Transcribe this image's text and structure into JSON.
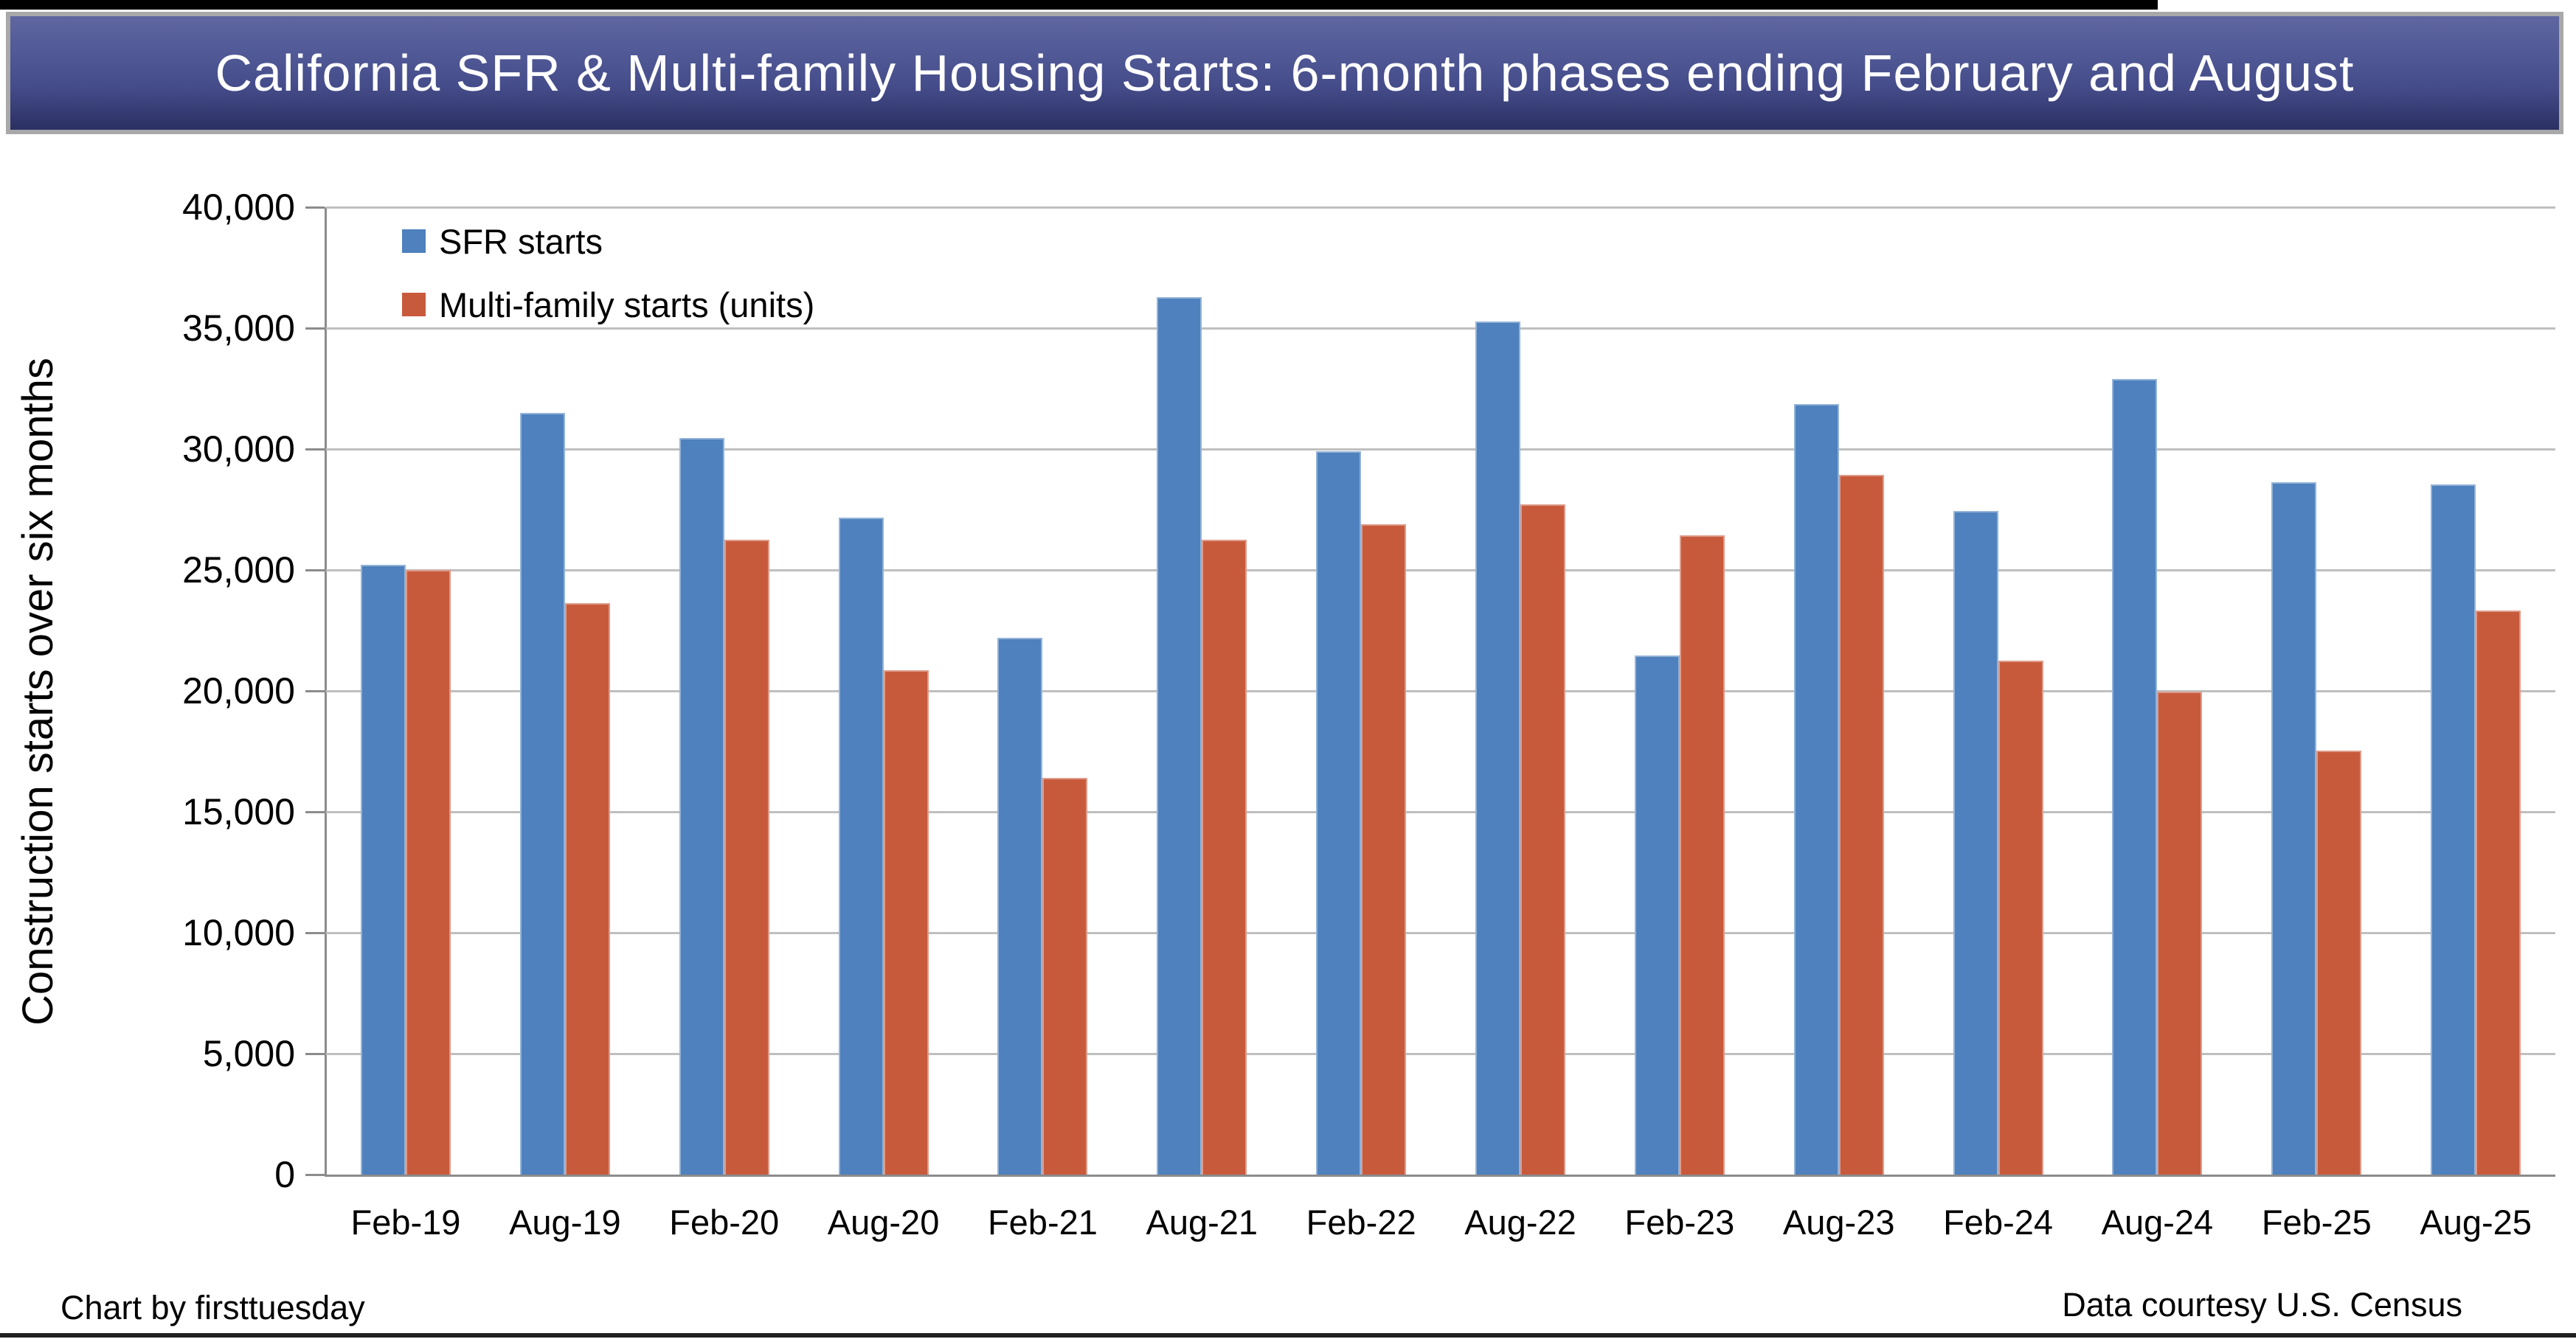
{
  "banner": {
    "title": "California SFR & Multi-family Housing Starts: 6-month phases ending February and August"
  },
  "footer": {
    "left": "Chart by firsttuesday",
    "right": "Data courtesy U.S. Census"
  },
  "colors": {
    "sfr_bar": "#4E81BD",
    "multifamily_bar": "#C85A3C",
    "gridline": "#BFBFBF",
    "axis": "#8C8C8C",
    "banner_top": "#5F66A0",
    "banner_bottom": "#2B3062",
    "banner_border": "#A8A8A8",
    "title_text": "#FFFFFF"
  },
  "chart_data": {
    "type": "bar",
    "title": "California SFR & Multi-family Housing Starts: 6-month phases ending February and August",
    "xlabel": "",
    "ylabel": "Construction starts over six months",
    "ylim": [
      0,
      40000
    ],
    "ytick_step": 5000,
    "ytick_labels": [
      "0",
      "5,000",
      "10,000",
      "15,000",
      "20,000",
      "25,000",
      "30,000",
      "35,000",
      "40,000"
    ],
    "grid": true,
    "legend_position": "upper-left-inside",
    "categories": [
      "Feb-19",
      "Aug-19",
      "Feb-20",
      "Aug-20",
      "Feb-21",
      "Aug-21",
      "Feb-22",
      "Aug-22",
      "Feb-23",
      "Aug-23",
      "Feb-24",
      "Aug-24",
      "Feb-25",
      "Aug-25"
    ],
    "series": [
      {
        "name": "SFR starts",
        "color": "#4E81BD",
        "values": [
          25210,
          31490,
          30460,
          27170,
          22200,
          36280,
          29910,
          35280,
          21460,
          31860,
          27440,
          32900,
          28630,
          28540
        ]
      },
      {
        "name": "Multi-family starts (units)",
        "color": "#C85A3C",
        "values": [
          25000,
          23630,
          26250,
          20850,
          16400,
          26250,
          26890,
          27710,
          26430,
          28930,
          21250,
          19970,
          17530,
          23320
        ]
      }
    ]
  }
}
